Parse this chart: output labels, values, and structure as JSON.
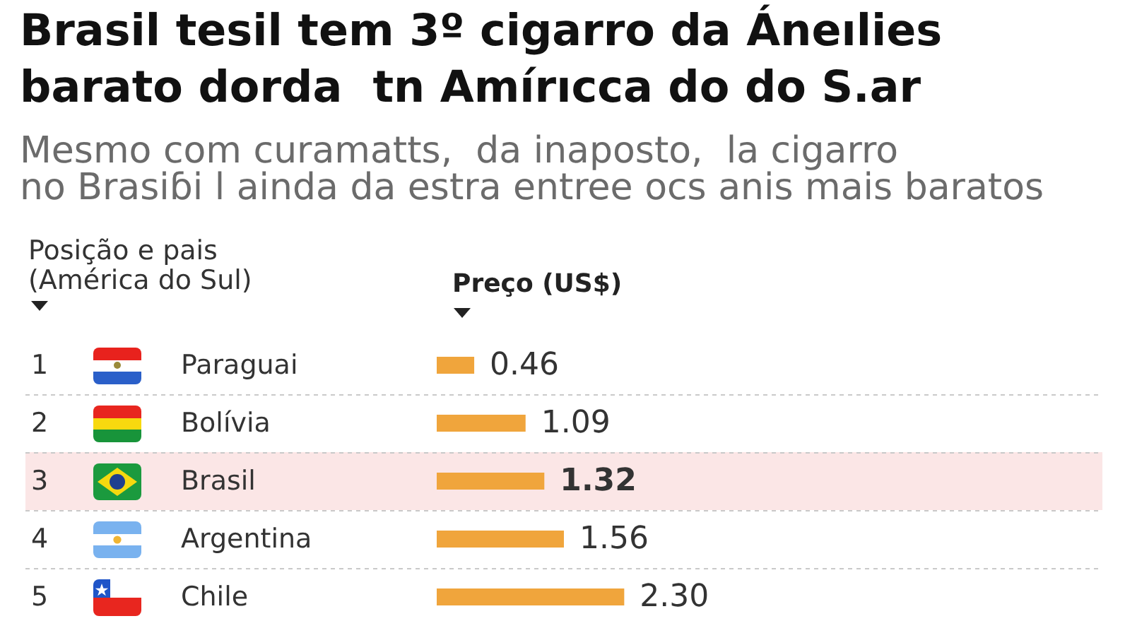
{
  "chart_data": {
    "type": "bar",
    "orientation": "horizontal",
    "title": "Brasil tesil tem 3º cigarro da Áneılies\nbarato dorda  tn Amírıcca do do S.ar",
    "subtitle": "Mesmo com curamatts,  da inaposto,  la cigarro\nno Brasiɓi l ainda da estra entree ocs anis mais baratos",
    "ylabel": "Posição e pais\n(América do Sul)",
    "xlabel": "Preço (US$)",
    "categories": [
      "Paraguai",
      "Bolívia",
      "Brasil",
      "Argentina",
      "Chile"
    ],
    "values": [
      0.46,
      1.09,
      1.32,
      1.56,
      2.3
    ],
    "value_labels": [
      "0.46",
      "1.09",
      "1.32",
      "1.56",
      "2.30"
    ],
    "color": "#f0a53c",
    "annotations": [
      "1",
      "2",
      "3",
      "4",
      "5"
    ],
    "bands": [
      {
        "axis": "y",
        "from": "Brasil",
        "to": "Brasil",
        "color": "#fbe6e6"
      }
    ],
    "grid": "y"
  }
}
